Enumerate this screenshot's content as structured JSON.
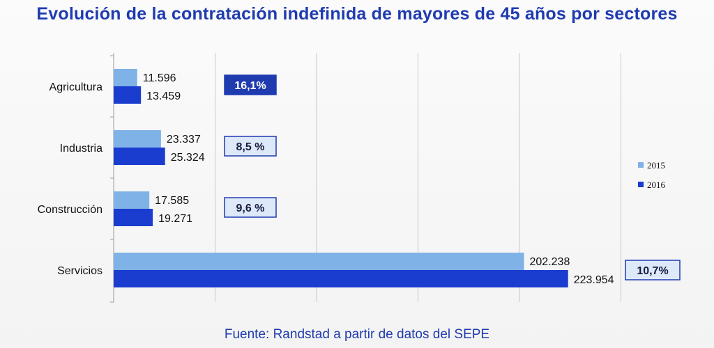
{
  "title": "Evolución de la contratación indefinida de mayores de 45 años por sectores",
  "source": "Fuente: Randstad a partir de datos del SEPE",
  "colors": {
    "series_2015": "#7fb2e6",
    "series_2016": "#1a3ccf",
    "title": "#1f3bb0",
    "badge_fill": "#dde9f8",
    "badge_stroke": "#1f3bb0",
    "badge_highlight_fill": "#1f3bb0",
    "gridline": "#c8c8c8"
  },
  "chart_data": {
    "type": "bar",
    "orientation": "horizontal",
    "title": "Evolución de la contratación indefinida de mayores de 45 años por sectores",
    "categories": [
      "Agricultura",
      "Industria",
      "Construcción",
      "Servicios"
    ],
    "series": [
      {
        "name": "2015",
        "values": [
          11596,
          23337,
          17585,
          202238
        ],
        "labels": [
          "11.596",
          "23.337",
          "17.585",
          "202.238"
        ]
      },
      {
        "name": "2016",
        "values": [
          13459,
          25324,
          19271,
          223954
        ],
        "labels": [
          "13.459",
          "25.324",
          "19.271",
          "223.954"
        ]
      }
    ],
    "growth_labels": [
      "16,1%",
      "8,5 %",
      "9,6 %",
      "10,7%"
    ],
    "highlighted_growth_index": 0,
    "xlim": [
      0,
      250000
    ],
    "grid_step": 50000,
    "xaxis_tick_labels_shown": false,
    "legend": [
      "2015",
      "2016"
    ],
    "legend_position": "right"
  }
}
